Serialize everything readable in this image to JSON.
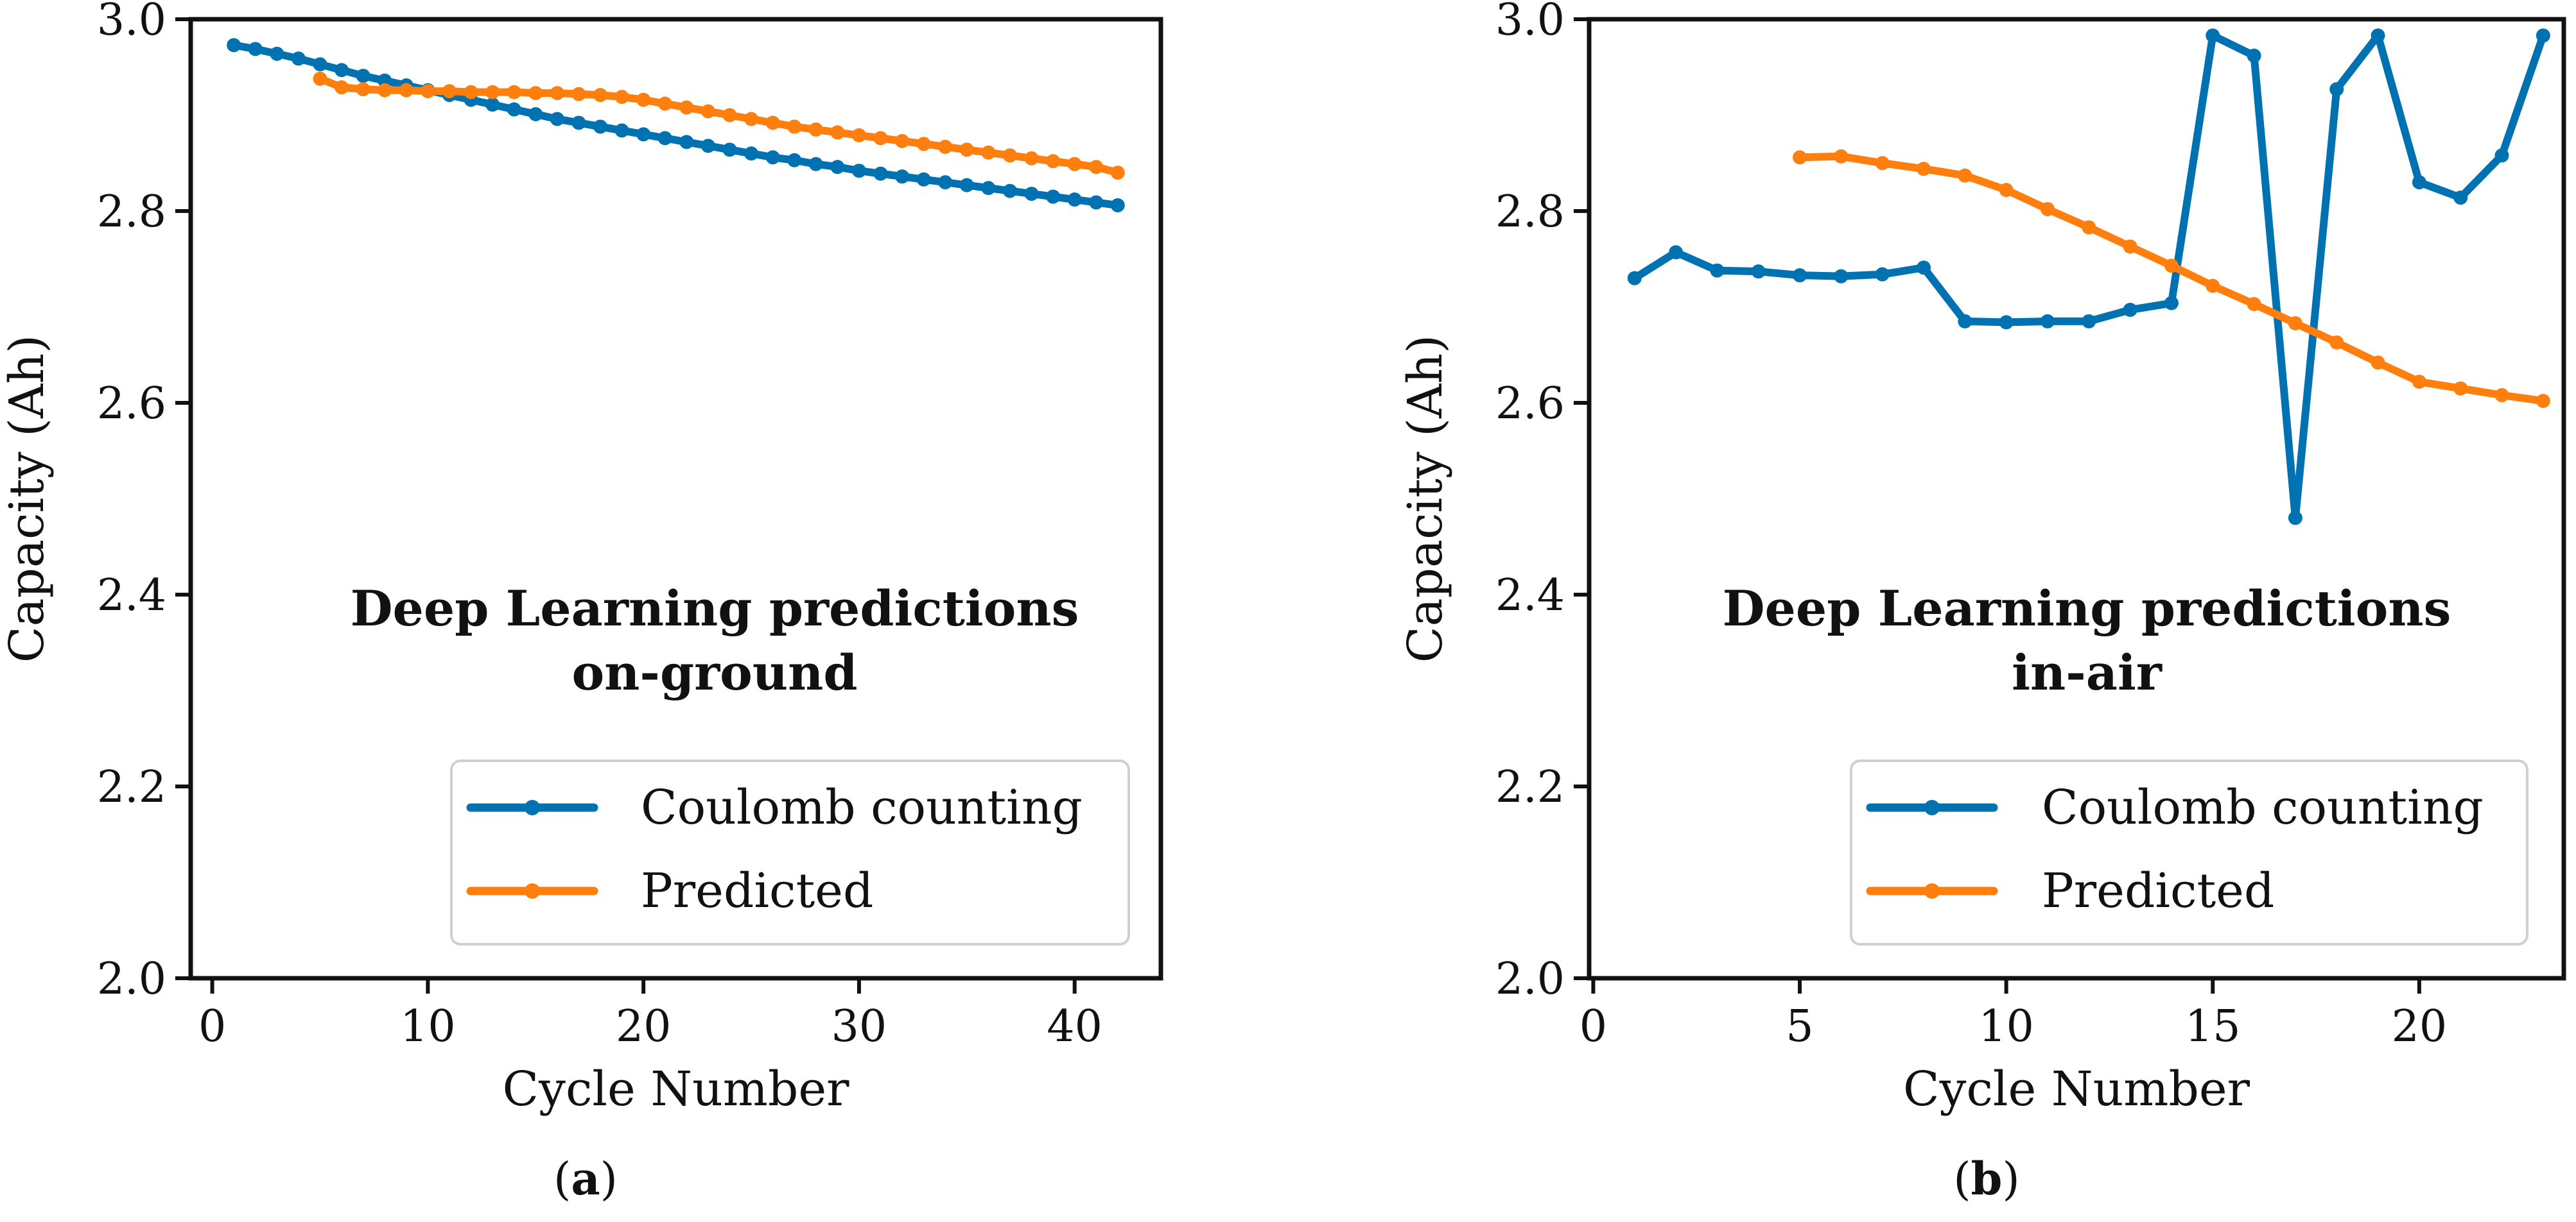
{
  "figure": {
    "colors": {
      "coulomb": "#0072B2",
      "predicted": "#FF7F0E",
      "axis": "#111111"
    }
  },
  "chart_data": [
    {
      "type": "line",
      "panel_label": "a",
      "title": "",
      "xlabel": "Cycle Number",
      "ylabel": "Capacity (Ah)",
      "xlim": [
        -1,
        44
      ],
      "ylim": [
        2.0,
        3.0
      ],
      "xticks": [
        0,
        10,
        20,
        30,
        40
      ],
      "yticks": [
        2.0,
        2.2,
        2.4,
        2.6,
        2.8,
        3.0
      ],
      "ytick_labels": [
        "2.0",
        "2.2",
        "2.4",
        "2.6",
        "2.8",
        "3.0"
      ],
      "annotation": [
        "Deep Learning predictions",
        "on-ground"
      ],
      "legend": {
        "placement": "lower-right",
        "entries": [
          "Coulomb counting",
          "Predicted"
        ]
      },
      "series": [
        {
          "name": "Coulomb counting",
          "color": "#0072B2",
          "x": [
            1,
            2,
            3,
            4,
            5,
            6,
            7,
            8,
            9,
            10,
            11,
            12,
            13,
            14,
            15,
            16,
            17,
            18,
            19,
            20,
            21,
            22,
            23,
            24,
            25,
            26,
            27,
            28,
            29,
            30,
            31,
            32,
            33,
            34,
            35,
            36,
            37,
            38,
            39,
            40,
            41,
            42
          ],
          "values": [
            2.973,
            2.969,
            2.964,
            2.959,
            2.953,
            2.947,
            2.941,
            2.936,
            2.931,
            2.926,
            2.921,
            2.916,
            2.911,
            2.906,
            2.901,
            2.896,
            2.892,
            2.888,
            2.884,
            2.88,
            2.876,
            2.872,
            2.868,
            2.864,
            2.86,
            2.856,
            2.853,
            2.849,
            2.846,
            2.842,
            2.839,
            2.836,
            2.833,
            2.83,
            2.827,
            2.824,
            2.821,
            2.818,
            2.815,
            2.812,
            2.809,
            2.806
          ]
        },
        {
          "name": "Predicted",
          "color": "#FF7F0E",
          "x": [
            5,
            6,
            7,
            8,
            9,
            10,
            11,
            12,
            13,
            14,
            15,
            16,
            17,
            18,
            19,
            20,
            21,
            22,
            23,
            24,
            25,
            26,
            27,
            28,
            29,
            30,
            31,
            32,
            33,
            34,
            35,
            36,
            37,
            38,
            39,
            40,
            41,
            42
          ],
          "values": [
            2.938,
            2.929,
            2.927,
            2.926,
            2.926,
            2.925,
            2.925,
            2.924,
            2.924,
            2.924,
            2.923,
            2.923,
            2.922,
            2.921,
            2.919,
            2.916,
            2.912,
            2.908,
            2.904,
            2.9,
            2.896,
            2.892,
            2.888,
            2.885,
            2.882,
            2.879,
            2.876,
            2.873,
            2.87,
            2.867,
            2.864,
            2.861,
            2.858,
            2.855,
            2.852,
            2.849,
            2.846,
            2.84
          ]
        }
      ]
    },
    {
      "type": "line",
      "panel_label": "b",
      "title": "",
      "xlabel": "Cycle Number",
      "ylabel": "Capacity (Ah)",
      "xlim": [
        -0.1,
        23.5
      ],
      "ylim": [
        2.0,
        3.0
      ],
      "xticks": [
        0,
        5,
        10,
        15,
        20
      ],
      "yticks": [
        2.0,
        2.2,
        2.4,
        2.6,
        2.8,
        3.0
      ],
      "ytick_labels": [
        "2.0",
        "2.2",
        "2.4",
        "2.6",
        "2.8",
        "3.0"
      ],
      "annotation": [
        "Deep Learning predictions",
        "in-air"
      ],
      "legend": {
        "placement": "lower-right",
        "entries": [
          "Coulomb counting",
          "Predicted"
        ]
      },
      "series": [
        {
          "name": "Coulomb counting",
          "color": "#0072B2",
          "x": [
            1,
            2,
            3,
            4,
            5,
            6,
            7,
            8,
            9,
            10,
            11,
            12,
            13,
            14,
            15,
            16,
            17,
            18,
            19,
            20,
            21,
            22,
            23
          ],
          "values": [
            2.73,
            2.757,
            2.738,
            2.737,
            2.733,
            2.732,
            2.734,
            2.741,
            2.685,
            2.684,
            2.685,
            2.685,
            2.697,
            2.704,
            2.983,
            2.962,
            2.48,
            2.927,
            2.983,
            2.83,
            2.814,
            2.858,
            2.983
          ]
        },
        {
          "name": "Predicted",
          "color": "#FF7F0E",
          "x": [
            5,
            6,
            7,
            8,
            9,
            10,
            11,
            12,
            13,
            14,
            15,
            16,
            17,
            18,
            19,
            20,
            21,
            22,
            23
          ],
          "values": [
            2.856,
            2.857,
            2.85,
            2.844,
            2.837,
            2.822,
            2.802,
            2.783,
            2.763,
            2.743,
            2.722,
            2.703,
            2.683,
            2.663,
            2.642,
            2.622,
            2.615,
            2.608,
            2.602
          ]
        }
      ]
    }
  ]
}
